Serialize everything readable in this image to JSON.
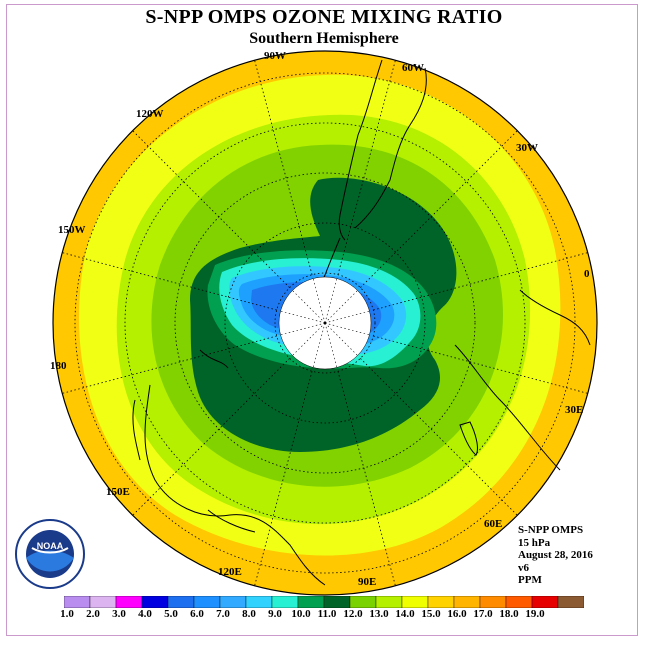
{
  "title": "S-NPP OMPS OZONE MIXING RATIO",
  "subtitle": "Southern Hemisphere",
  "longitude_labels": [
    "90W",
    "60W",
    "30W",
    "0",
    "30E",
    "60E",
    "90E",
    "120E",
    "150E",
    "180",
    "150W",
    "120W"
  ],
  "info": {
    "line1": "S-NPP OMPS",
    "line2": "15 hPa",
    "line3": "August 28, 2016",
    "line4": "v6",
    "line5": "PPM"
  },
  "colorbar": {
    "labels": [
      "1.0",
      "2.0",
      "3.0",
      "4.0",
      "5.0",
      "6.0",
      "7.0",
      "8.0",
      "9.0",
      "10.0",
      "11.0",
      "12.0",
      "13.0",
      "14.0",
      "15.0",
      "16.0",
      "17.0",
      "18.0",
      "19.0"
    ],
    "colors": [
      "#b98cf0",
      "#dcb4f0",
      "#ff00ff",
      "#0000e0",
      "#1e6ef0",
      "#1e90ff",
      "#32aaff",
      "#32d2ff",
      "#28f0d2",
      "#00a050",
      "#006428",
      "#7ad200",
      "#b4f000",
      "#f0ff00",
      "#ffd200",
      "#ffb400",
      "#ff8c00",
      "#ff5a00",
      "#e60000",
      "#8c5a32"
    ]
  },
  "map_colors": {
    "outer": "#ffc800",
    "c14": "#f0ff14",
    "c13": "#b4f000",
    "c12": "#82d200",
    "c11": "#006428",
    "c10": "#00a050",
    "c9": "#28f0d2",
    "c8": "#32c8ff",
    "c7": "#1ea0ff",
    "c6": "#1e78f0",
    "pole": "#ffffff"
  },
  "logo_text": "NOAA"
}
